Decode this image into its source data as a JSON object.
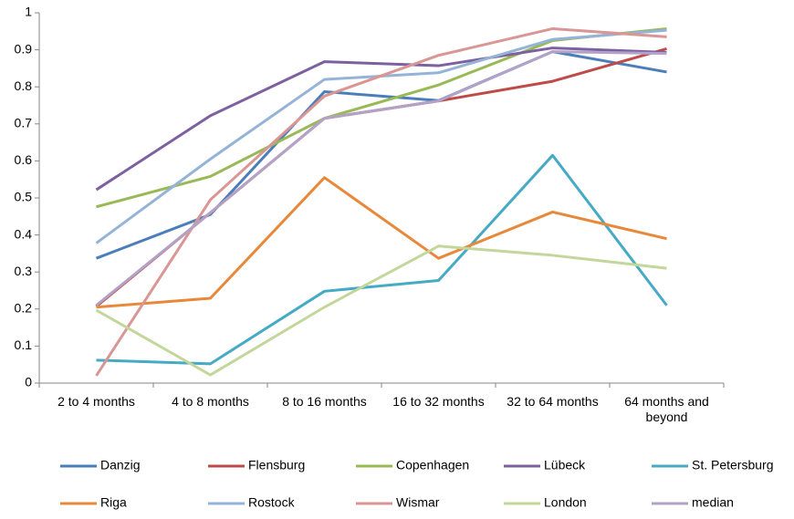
{
  "chart_data": {
    "type": "line",
    "categories": [
      "2 to 4 months",
      "4 to 8 months",
      "8 to 16 months",
      "16 to 32 months",
      "32 to 64 months",
      "64 months and beyond"
    ],
    "ylim": [
      0,
      1
    ],
    "yticks": [
      0,
      0.1,
      0.2,
      0.3,
      0.4,
      0.5,
      0.6,
      0.7,
      0.8,
      0.9,
      1
    ],
    "grid": false,
    "legend": "bottom",
    "series": [
      {
        "name": "Danzig",
        "color": "#4a7ebb",
        "values": [
          0.337,
          0.455,
          0.787,
          0.763,
          0.895,
          0.84
        ]
      },
      {
        "name": "Flensburg",
        "color": "#be4b48",
        "values": [
          0.207,
          0.46,
          0.715,
          0.762,
          0.815,
          0.903
        ]
      },
      {
        "name": "Copenhagen",
        "color": "#98b954",
        "values": [
          0.476,
          0.558,
          0.715,
          0.805,
          0.925,
          0.957
        ]
      },
      {
        "name": "Lübeck",
        "color": "#7d60a0",
        "values": [
          0.522,
          0.722,
          0.868,
          0.857,
          0.905,
          0.893
        ]
      },
      {
        "name": "St. Petersburg",
        "color": "#46aac5",
        "values": [
          0.062,
          0.052,
          0.248,
          0.277,
          0.615,
          0.21
        ]
      },
      {
        "name": "Riga",
        "color": "#e8883a",
        "values": [
          0.205,
          0.229,
          0.555,
          0.337,
          0.462,
          0.39
        ]
      },
      {
        "name": "Rostock",
        "color": "#95b3d7",
        "values": [
          0.378,
          0.605,
          0.82,
          0.838,
          0.928,
          0.953
        ]
      },
      {
        "name": "Wismar",
        "color": "#d99694",
        "values": [
          0.02,
          0.495,
          0.775,
          0.885,
          0.957,
          0.935
        ]
      },
      {
        "name": "London",
        "color": "#c3d69b",
        "values": [
          0.197,
          0.022,
          0.205,
          0.37,
          0.345,
          0.31
        ]
      },
      {
        "name": "median",
        "color": "#b3a2c7",
        "values": [
          0.21,
          0.46,
          0.715,
          0.762,
          0.895,
          0.89
        ]
      }
    ]
  }
}
